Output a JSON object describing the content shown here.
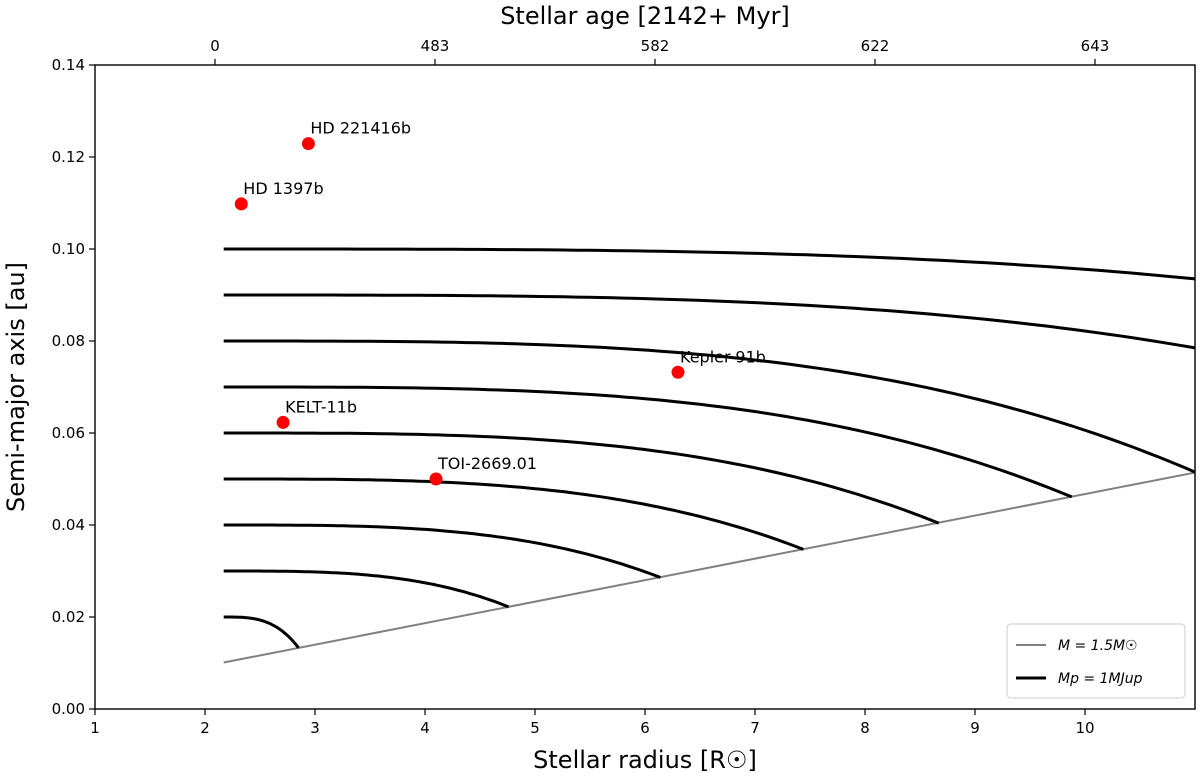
{
  "chart_data": {
    "type": "line",
    "xlabel": "Stellar radius [R☉]",
    "ylabel": "Semi-major axis [au]",
    "top_xlabel": "Stellar age [2142+ Myr]",
    "xlim": [
      1,
      11
    ],
    "ylim": [
      0,
      0.14
    ],
    "x_ticks": [
      1,
      2,
      3,
      4,
      5,
      6,
      7,
      8,
      9,
      10
    ],
    "y_ticks": [
      0.0,
      0.02,
      0.04,
      0.06,
      0.08,
      0.1,
      0.12,
      0.14
    ],
    "x_tick_labels": [
      "1",
      "2",
      "3",
      "4",
      "5",
      "6",
      "7",
      "8",
      "9",
      "10"
    ],
    "y_tick_labels": [
      "0.00",
      "0.02",
      "0.04",
      "0.06",
      "0.08",
      "0.10",
      "0.12",
      "0.14"
    ],
    "top_ticks": [
      {
        "x": 2.0,
        "label": "0"
      },
      {
        "x": 4.0,
        "label": "483"
      },
      {
        "x": 6.0,
        "label": "582"
      },
      {
        "x": 8.0,
        "label": "622"
      },
      {
        "x": 10.0,
        "label": "643"
      }
    ],
    "grid": false,
    "legend_position": "bottom-right",
    "legend": [
      {
        "label": "M = 1.5M☉",
        "color": "#808080"
      },
      {
        "label": "Mp = 1MJup",
        "color": "#000000"
      }
    ],
    "series": [
      {
        "name": "M = 1.5M☉",
        "color": "#808080",
        "x": [
          2.17,
          11.0
        ],
        "y": [
          0.0101,
          0.0514
        ]
      },
      {
        "name": "Mp = 1MJup",
        "color": "#000000",
        "curves": [
          {
            "a0": 0.1,
            "x_end": 11.0,
            "y_end": 0.0935
          },
          {
            "a0": 0.09,
            "x_end": 11.0,
            "y_end": 0.0785
          },
          {
            "a0": 0.08,
            "x_end": 11.0,
            "y_end": 0.0515
          },
          {
            "a0": 0.07,
            "x_end": 9.88,
            "y_end": 0.0461
          },
          {
            "a0": 0.06,
            "x_end": 8.67,
            "y_end": 0.0404
          },
          {
            "a0": 0.05,
            "x_end": 7.44,
            "y_end": 0.0347
          },
          {
            "a0": 0.04,
            "x_end": 6.14,
            "y_end": 0.0286
          },
          {
            "a0": 0.03,
            "x_end": 4.76,
            "y_end": 0.0222
          },
          {
            "a0": 0.02,
            "x_end": 2.85,
            "y_end": 0.0133
          }
        ]
      }
    ],
    "planets": [
      {
        "name": "HD 221416b",
        "x": 2.94,
        "y": 0.1229
      },
      {
        "name": "HD 1397b",
        "x": 2.33,
        "y": 0.1098
      },
      {
        "name": "Kepler-91b",
        "x": 6.3,
        "y": 0.0732
      },
      {
        "name": "KELT-11b",
        "x": 2.71,
        "y": 0.0623
      },
      {
        "name": "TOI-2669.01",
        "x": 4.1,
        "y": 0.05
      }
    ],
    "planet_color": "#ff0000"
  }
}
